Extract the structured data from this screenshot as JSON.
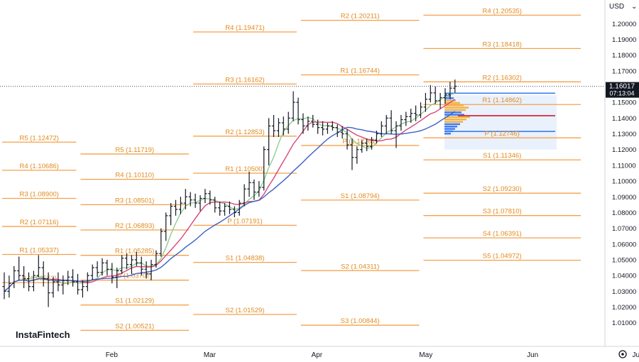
{
  "header": {
    "currency": "USD"
  },
  "watermark": "InstaFintech",
  "price_tag": {
    "price": "1.16017",
    "countdown": "07:13:04"
  },
  "colors": {
    "pivot": "#f5a04a",
    "pivot_text": "#e08a1e",
    "bars": "#131722",
    "ma_fast": "#8fce8f",
    "ma_mid": "#d9457a",
    "ma_slow": "#3d5fc9",
    "tag_bg": "#131722",
    "profile": "#3d7bf0",
    "profile_hi": "#f5b13c"
  },
  "chart_data": {
    "type": "ohlc",
    "yaxis": {
      "min": 0.995,
      "max": 1.215,
      "ticks": [
        "1.20000",
        "1.19000",
        "1.18000",
        "1.17000",
        "1.16000",
        "1.15000",
        "1.14000",
        "1.13000",
        "1.12000",
        "1.11000",
        "1.10000",
        "1.09000",
        "1.08000",
        "1.07000",
        "1.06000",
        "1.05000",
        "1.04000",
        "1.03000",
        "1.02000",
        "1.01000"
      ]
    },
    "xaxis": {
      "months": [
        {
          "label": "Feb",
          "week": 4.6
        },
        {
          "label": "Mar",
          "week": 8.6
        },
        {
          "label": "Apr",
          "week": 13.0
        },
        {
          "label": "May",
          "week": 17.4
        },
        {
          "label": "Jun",
          "week": 21.8
        },
        {
          "label": "Jul",
          "week": 26.1
        }
      ]
    },
    "pivot_levels": [
      {
        "label": "R5 (1.12472)",
        "value": 1.12472,
        "w0": 0,
        "w1": 3.2
      },
      {
        "label": "R4 (1.10686)",
        "value": 1.10686,
        "w0": 0,
        "w1": 3.2
      },
      {
        "label": "R3 (1.08900)",
        "value": 1.089,
        "w0": 0,
        "w1": 3.2
      },
      {
        "label": "R2 (1.07116)",
        "value": 1.07116,
        "w0": 0,
        "w1": 3.2
      },
      {
        "label": "R1 (1.05337)",
        "value": 1.05337,
        "w0": 0,
        "w1": 3.2
      },
      {
        "label": "P (1.03552)",
        "value": 1.03552,
        "w0": 0,
        "w1": 3.2
      },
      {
        "label": "R5 (1.11719)",
        "value": 1.11719,
        "w0": 3.2,
        "w1": 7.8
      },
      {
        "label": "R4 (1.10110)",
        "value": 1.1011,
        "w0": 3.2,
        "w1": 7.8
      },
      {
        "label": "R3 (1.08501)",
        "value": 1.08501,
        "w0": 3.2,
        "w1": 7.8
      },
      {
        "label": "R2 (1.06893)",
        "value": 1.06893,
        "w0": 3.2,
        "w1": 7.8
      },
      {
        "label": "R1 (1.05285)",
        "value": 1.05285,
        "w0": 3.2,
        "w1": 7.8
      },
      {
        "label": "P (1.03707)",
        "value": 1.03707,
        "w0": 3.2,
        "w1": 7.8
      },
      {
        "label": "S1 (1.02129)",
        "value": 1.02129,
        "w0": 3.2,
        "w1": 7.8
      },
      {
        "label": "S2 (1.00521)",
        "value": 1.00521,
        "w0": 3.2,
        "w1": 7.8
      },
      {
        "label": "R4 (1.19471)",
        "value": 1.19471,
        "w0": 7.8,
        "w1": 12.2
      },
      {
        "label": "R3 (1.16162)",
        "value": 1.16162,
        "w0": 7.8,
        "w1": 12.2
      },
      {
        "label": "R2 (1.12853)",
        "value": 1.12853,
        "w0": 7.8,
        "w1": 12.2
      },
      {
        "label": "R1 (1.10500)",
        "value": 1.105,
        "w0": 7.8,
        "w1": 12.2
      },
      {
        "label": "P (1.07191)",
        "value": 1.07191,
        "w0": 7.8,
        "w1": 12.2
      },
      {
        "label": "S1 (1.04838)",
        "value": 1.04838,
        "w0": 7.8,
        "w1": 12.2
      },
      {
        "label": "S2 (1.01529)",
        "value": 1.01529,
        "w0": 7.8,
        "w1": 12.2
      },
      {
        "label": "R2 (1.20211)",
        "value": 1.20211,
        "w0": 12.2,
        "w1": 17.2
      },
      {
        "label": "R1 (1.16744)",
        "value": 1.16744,
        "w0": 12.2,
        "w1": 17.2
      },
      {
        "label": "P (1.12261)",
        "value": 1.12261,
        "w0": 12.2,
        "w1": 17.2
      },
      {
        "label": "S1 (1.08794)",
        "value": 1.08794,
        "w0": 12.2,
        "w1": 17.2
      },
      {
        "label": "S2 (1.04311)",
        "value": 1.04311,
        "w0": 12.2,
        "w1": 17.2
      },
      {
        "label": "S3 (1.00844)",
        "value": 1.00844,
        "w0": 12.2,
        "w1": 17.2
      },
      {
        "label": "R4 (1.20535)",
        "value": 1.20535,
        "w0": 17.2,
        "w1": 23.8
      },
      {
        "label": "R3 (1.18418)",
        "value": 1.18418,
        "w0": 17.2,
        "w1": 23.8
      },
      {
        "label": "R2 (1.16302)",
        "value": 1.16302,
        "w0": 17.2,
        "w1": 23.8
      },
      {
        "label": "R1 (1.14862)",
        "value": 1.14862,
        "w0": 17.2,
        "w1": 23.8
      },
      {
        "label": "P (1.12746)",
        "value": 1.12746,
        "w0": 17.2,
        "w1": 23.8
      },
      {
        "label": "S1 (1.11346)",
        "value": 1.11346,
        "w0": 17.2,
        "w1": 23.8
      },
      {
        "label": "S2 (1.09230)",
        "value": 1.0923,
        "w0": 17.2,
        "w1": 23.8
      },
      {
        "label": "S3 (1.07810)",
        "value": 1.0781,
        "w0": 17.2,
        "w1": 23.8
      },
      {
        "label": "S4 (1.06391)",
        "value": 1.06391,
        "w0": 17.2,
        "w1": 23.8
      },
      {
        "label": "S5 (1.04972)",
        "value": 1.04972,
        "w0": 17.2,
        "w1": 23.8
      }
    ],
    "bars": [
      [
        1.033,
        1.042,
        1.025,
        1.03
      ],
      [
        1.03,
        1.04,
        1.026,
        1.035
      ],
      [
        1.035,
        1.046,
        1.032,
        1.043
      ],
      [
        1.043,
        1.052,
        1.037,
        1.04
      ],
      [
        1.04,
        1.046,
        1.032,
        1.038
      ],
      [
        1.038,
        1.042,
        1.03,
        1.033
      ],
      [
        1.033,
        1.043,
        1.03,
        1.04
      ],
      [
        1.04,
        1.053,
        1.039,
        1.045
      ],
      [
        1.045,
        1.049,
        1.033,
        1.038
      ],
      [
        1.038,
        1.042,
        1.02,
        1.029
      ],
      [
        1.029,
        1.039,
        1.026,
        1.036
      ],
      [
        1.036,
        1.042,
        1.03,
        1.034
      ],
      [
        1.034,
        1.04,
        1.028,
        1.037
      ],
      [
        1.037,
        1.043,
        1.034,
        1.039
      ],
      [
        1.039,
        1.044,
        1.033,
        1.036
      ],
      [
        1.036,
        1.041,
        1.028,
        1.031
      ],
      [
        1.031,
        1.037,
        1.026,
        1.033
      ],
      [
        1.033,
        1.042,
        1.03,
        1.04
      ],
      [
        1.04,
        1.047,
        1.037,
        1.045
      ],
      [
        1.045,
        1.049,
        1.039,
        1.042
      ],
      [
        1.042,
        1.051,
        1.04,
        1.048
      ],
      [
        1.048,
        1.05,
        1.04,
        1.044
      ],
      [
        1.044,
        1.048,
        1.035,
        1.039
      ],
      [
        1.039,
        1.045,
        1.032,
        1.043
      ],
      [
        1.043,
        1.053,
        1.041,
        1.051
      ],
      [
        1.051,
        1.054,
        1.044,
        1.047
      ],
      [
        1.047,
        1.053,
        1.041,
        1.05
      ],
      [
        1.05,
        1.055,
        1.046,
        1.048
      ],
      [
        1.048,
        1.052,
        1.04,
        1.044
      ],
      [
        1.044,
        1.049,
        1.038,
        1.041
      ],
      [
        1.041,
        1.05,
        1.037,
        1.047
      ],
      [
        1.047,
        1.056,
        1.045,
        1.054
      ],
      [
        1.054,
        1.07,
        1.052,
        1.068
      ],
      [
        1.068,
        1.08,
        1.062,
        1.078
      ],
      [
        1.078,
        1.086,
        1.072,
        1.084
      ],
      [
        1.084,
        1.088,
        1.078,
        1.082
      ],
      [
        1.082,
        1.09,
        1.079,
        1.086
      ],
      [
        1.086,
        1.095,
        1.082,
        1.09
      ],
      [
        1.09,
        1.093,
        1.084,
        1.088
      ],
      [
        1.088,
        1.092,
        1.083,
        1.086
      ],
      [
        1.086,
        1.091,
        1.081,
        1.089
      ],
      [
        1.089,
        1.095,
        1.086,
        1.092
      ],
      [
        1.092,
        1.094,
        1.085,
        1.088
      ],
      [
        1.088,
        1.09,
        1.08,
        1.083
      ],
      [
        1.083,
        1.087,
        1.078,
        1.081
      ],
      [
        1.081,
        1.086,
        1.078,
        1.084
      ],
      [
        1.084,
        1.087,
        1.079,
        1.082
      ],
      [
        1.082,
        1.084,
        1.077,
        1.08
      ],
      [
        1.08,
        1.088,
        1.078,
        1.086
      ],
      [
        1.086,
        1.098,
        1.084,
        1.095
      ],
      [
        1.095,
        1.106,
        1.09,
        1.099
      ],
      [
        1.099,
        1.101,
        1.088,
        1.093
      ],
      [
        1.093,
        1.1,
        1.09,
        1.096
      ],
      [
        1.096,
        1.122,
        1.094,
        1.12
      ],
      [
        1.12,
        1.14,
        1.11,
        1.135
      ],
      [
        1.135,
        1.142,
        1.128,
        1.132
      ],
      [
        1.132,
        1.14,
        1.128,
        1.137
      ],
      [
        1.137,
        1.141,
        1.129,
        1.133
      ],
      [
        1.133,
        1.144,
        1.13,
        1.14
      ],
      [
        1.14,
        1.157,
        1.138,
        1.15
      ],
      [
        1.15,
        1.153,
        1.136,
        1.139
      ],
      [
        1.139,
        1.143,
        1.13,
        1.135
      ],
      [
        1.135,
        1.141,
        1.132,
        1.138
      ],
      [
        1.138,
        1.142,
        1.134,
        1.136
      ],
      [
        1.136,
        1.139,
        1.13,
        1.134
      ],
      [
        1.134,
        1.138,
        1.129,
        1.133
      ],
      [
        1.133,
        1.137,
        1.13,
        1.135
      ],
      [
        1.135,
        1.138,
        1.132,
        1.134
      ],
      [
        1.134,
        1.136,
        1.128,
        1.131
      ],
      [
        1.131,
        1.135,
        1.127,
        1.13
      ],
      [
        1.13,
        1.133,
        1.12,
        1.123
      ],
      [
        1.123,
        1.127,
        1.107,
        1.115
      ],
      [
        1.115,
        1.122,
        1.111,
        1.12
      ],
      [
        1.12,
        1.126,
        1.118,
        1.124
      ],
      [
        1.124,
        1.127,
        1.119,
        1.122
      ],
      [
        1.122,
        1.128,
        1.12,
        1.126
      ],
      [
        1.126,
        1.132,
        1.124,
        1.13
      ],
      [
        1.13,
        1.138,
        1.128,
        1.135
      ],
      [
        1.135,
        1.142,
        1.13,
        1.14
      ],
      [
        1.14,
        1.145,
        1.13,
        1.132
      ],
      [
        1.132,
        1.138,
        1.121,
        1.135
      ],
      [
        1.135,
        1.142,
        1.132,
        1.139
      ],
      [
        1.139,
        1.144,
        1.135,
        1.141
      ],
      [
        1.141,
        1.146,
        1.137,
        1.143
      ],
      [
        1.143,
        1.148,
        1.138,
        1.142
      ],
      [
        1.142,
        1.15,
        1.14,
        1.147
      ],
      [
        1.147,
        1.156,
        1.144,
        1.152
      ],
      [
        1.152,
        1.161,
        1.15,
        1.156
      ],
      [
        1.156,
        1.16,
        1.149,
        1.151
      ],
      [
        1.151,
        1.156,
        1.146,
        1.153
      ],
      [
        1.153,
        1.159,
        1.149,
        1.155
      ],
      [
        1.155,
        1.163,
        1.152,
        1.159
      ],
      [
        1.159,
        1.1645,
        1.156,
        1.1602
      ]
    ]
  }
}
